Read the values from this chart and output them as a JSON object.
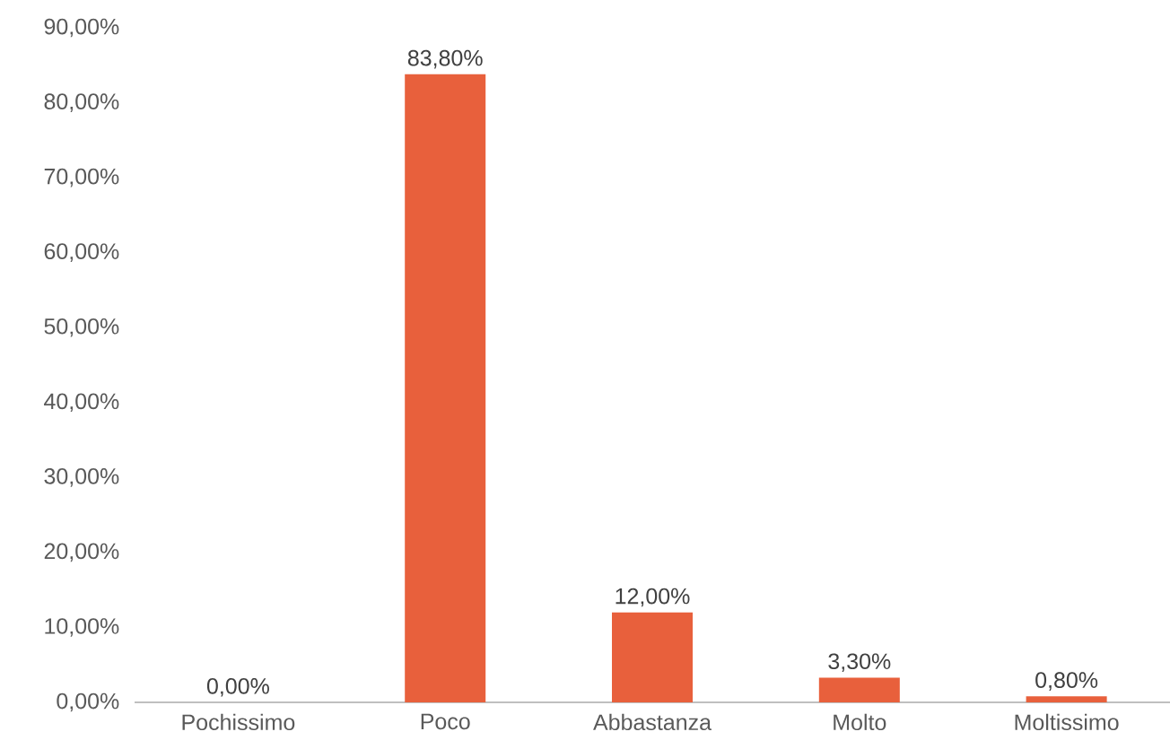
{
  "chart_data": {
    "type": "bar",
    "categories": [
      "Pochissimo",
      "Poco",
      "Abbastanza",
      "Molto",
      "Moltissimo"
    ],
    "values": [
      0,
      83.8,
      12,
      3.3,
      0.8
    ],
    "value_labels": [
      "0,00%",
      "83,80%",
      "12,00%",
      "3,30%",
      "0,80%"
    ],
    "color": "#e8603c",
    "ylim": [
      0,
      90
    ],
    "yticks": [
      {
        "value": 0,
        "label": "0,00%"
      },
      {
        "value": 10,
        "label": "10,00%"
      },
      {
        "value": 20,
        "label": "20,00%"
      },
      {
        "value": 30,
        "label": "30,00%"
      },
      {
        "value": 40,
        "label": "40,00%"
      },
      {
        "value": 50,
        "label": "50,00%"
      },
      {
        "value": 60,
        "label": "60,00%"
      },
      {
        "value": 70,
        "label": "70,00%"
      },
      {
        "value": 80,
        "label": "80,00%"
      },
      {
        "value": 90,
        "label": "90,00%"
      }
    ]
  }
}
